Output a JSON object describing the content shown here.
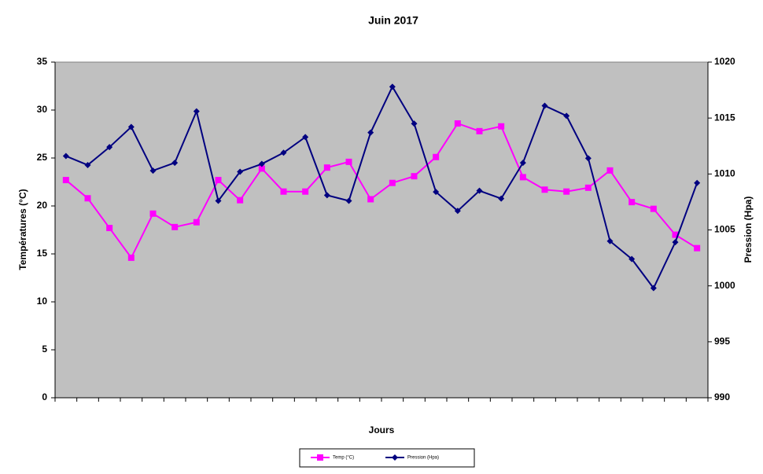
{
  "chart_data": {
    "type": "line",
    "title": "Juin 2017",
    "xlabel": "Jours",
    "ylabel": "Températures (°C)",
    "y2label": "Pression (Hpa)",
    "categories": [
      null,
      null,
      null,
      null,
      null,
      null,
      null,
      null,
      null,
      null,
      null,
      null,
      null,
      null,
      null,
      null,
      null,
      null,
      null,
      null,
      null,
      null,
      null,
      null,
      null,
      null,
      null,
      null,
      null,
      null
    ],
    "ylim": [
      0,
      35
    ],
    "yticks": [
      0,
      5,
      10,
      15,
      20,
      25,
      30,
      35
    ],
    "y2lim": [
      990,
      1020
    ],
    "y2ticks": [
      990,
      995,
      1000,
      1005,
      1010,
      1015,
      1020
    ],
    "grid": false,
    "legend": "bottom",
    "series": [
      {
        "name": "Temp (°C)",
        "color": "#ff00ff",
        "marker": "square",
        "values": [
          22.7,
          20.8,
          17.7,
          14.6,
          19.2,
          17.8,
          18.3,
          22.7,
          20.6,
          23.9,
          21.5,
          21.5,
          24.0,
          24.6,
          20.7,
          22.4,
          23.1,
          25.1,
          28.6,
          27.8,
          28.3,
          23.0,
          21.7,
          21.5,
          21.9,
          23.7,
          20.4,
          19.7,
          17.0,
          15.6
        ]
      },
      {
        "name": "Pression (Hpa)",
        "color": "#000080",
        "marker": "diamond",
        "axis": "y2",
        "values": [
          1011.6,
          1010.8,
          1012.4,
          1014.2,
          1010.3,
          1011.0,
          1015.6,
          1007.6,
          1010.2,
          1010.9,
          1011.9,
          1013.3,
          1008.1,
          1007.6,
          1013.7,
          1017.8,
          1014.5,
          1008.4,
          1006.7,
          1008.5,
          1007.8,
          1011.0,
          1016.1,
          1015.2,
          1011.4,
          1004.0,
          1002.4,
          999.8,
          1003.9,
          1009.2
        ]
      }
    ]
  }
}
